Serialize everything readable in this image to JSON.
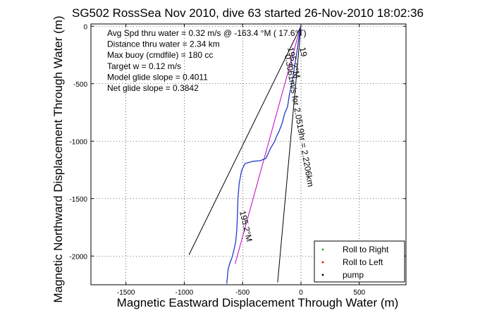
{
  "chart_data": {
    "type": "line",
    "title": "SG502 RossSea Nov 2010, dive 63 started 26-Nov-2010 18:02:36",
    "xlabel": "Magnetic Eastward Displacement Through Water (m)",
    "ylabel": "Magnetic Northward Displacement Through Water (m)",
    "xlim": [
      -1800,
      900
    ],
    "ylim": [
      -2250,
      20
    ],
    "xticks": [
      -1500,
      -1000,
      -500,
      0,
      500
    ],
    "yticks": [
      0,
      -500,
      -1000,
      -1500,
      -2000
    ],
    "grid": true,
    "annotations": [
      "Avg Spd thru water =  0.32 m/s @ -163.4 °M ( 17.6°T)",
      "Distance thru water =  2.34 km",
      "Max buoy (cmdfile) = 180 cc",
      "Target w = 0.12 m/s",
      "Model glide slope = 0.4011",
      "Net glide slope = 0.3842"
    ],
    "track_labels": [
      "195.2°M",
      "0.3061m/s for 2.0519hr = 2.2206km",
      "195.2°M",
      "19"
    ],
    "series": [
      {
        "name": "track",
        "color": "#1f3cc8",
        "x": [
          0,
          -12,
          -25,
          -40,
          -55,
          -68,
          -82,
          -100,
          -115,
          -140,
          -160,
          -190,
          -210,
          -225,
          -260,
          -300,
          -350,
          -410,
          -480,
          -510,
          -530,
          -540,
          -545,
          -550,
          -560,
          -575,
          -590,
          -605,
          -615,
          -625,
          -630,
          -636
        ],
        "y": [
          0,
          -60,
          -150,
          -260,
          -350,
          -440,
          -520,
          -600,
          -700,
          -760,
          -840,
          -920,
          -960,
          -1000,
          -1060,
          -1150,
          -1170,
          -1175,
          -1195,
          -1260,
          -1370,
          -1500,
          -1650,
          -1780,
          -1880,
          -1950,
          -2010,
          -2050,
          -2080,
          -2120,
          -2180,
          -2240
        ]
      }
    ],
    "reference_lines": [
      {
        "kind": "heading",
        "color": "#c000c0",
        "x": [
          -5,
          -565
        ],
        "y": [
          -10,
          -2070
        ]
      },
      {
        "kind": "cone",
        "color": "#000000",
        "x": [
          0,
          -960
        ],
        "y": [
          0,
          -1990
        ]
      },
      {
        "kind": "cone",
        "color": "#000000",
        "x": [
          0,
          -200
        ],
        "y": [
          0,
          -2230
        ]
      }
    ],
    "legend": {
      "placement": "bottom-right",
      "entries": [
        {
          "label": "Roll to Right",
          "color": "#00b000"
        },
        {
          "label": "Roll to Left",
          "color": "#e00000"
        },
        {
          "label": "pump",
          "color": "#000000"
        }
      ]
    }
  }
}
